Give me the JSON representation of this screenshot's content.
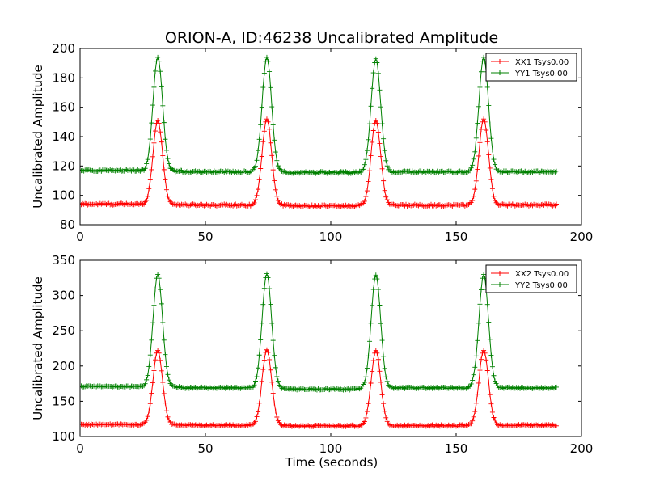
{
  "colors": {
    "red": "#ff0000",
    "green": "#008000"
  },
  "chart_data": [
    {
      "type": "line",
      "title": "ORION-A, ID:46238 Uncalibrated Amplitude",
      "xlabel": "",
      "ylabel": "Uncalibrated Amplitude",
      "xlim": [
        0,
        200
      ],
      "ylim": [
        80,
        200
      ],
      "xticks": [
        "0",
        "50",
        "100",
        "150",
        "200"
      ],
      "yticks": [
        "80",
        "100",
        "120",
        "140",
        "160",
        "180",
        "200"
      ],
      "legend_position": "top-right",
      "marker": "plus",
      "x_range": [
        0,
        190
      ],
      "peak_times": [
        31,
        74.5,
        118,
        161
      ],
      "series": [
        {
          "name": "XX1 Tsys0.00",
          "color": "#ff0000",
          "baselines": [
            94,
            93.5,
            92.8,
            93.3,
            93.5
          ],
          "peak_values": [
            151,
            152,
            151,
            152
          ]
        },
        {
          "name": "YY1 Tsys0.00",
          "color": "#008000",
          "baselines": [
            117,
            116,
            115.5,
            116,
            116
          ],
          "peak_values": [
            194,
            194,
            193,
            194
          ]
        }
      ]
    },
    {
      "type": "line",
      "title": "",
      "xlabel": "Time (seconds)",
      "ylabel": "Uncalibrated Amplitude",
      "xlim": [
        0,
        200
      ],
      "ylim": [
        100,
        350
      ],
      "xticks": [
        "0",
        "50",
        "100",
        "150",
        "200"
      ],
      "yticks": [
        "100",
        "150",
        "200",
        "250",
        "300",
        "350"
      ],
      "legend_position": "top-right",
      "marker": "plus",
      "x_range": [
        0,
        190
      ],
      "peak_times": [
        31,
        74.5,
        118,
        161
      ],
      "series": [
        {
          "name": "XX2 Tsys0.00",
          "color": "#ff0000",
          "baselines": [
            117,
            116,
            115,
            115.5,
            116
          ],
          "peak_values": [
            222,
            223,
            222,
            222
          ]
        },
        {
          "name": "YY2 Tsys0.00",
          "color": "#008000",
          "baselines": [
            171,
            169,
            167,
            169,
            169
          ],
          "peak_values": [
            330,
            331,
            329,
            330
          ]
        }
      ]
    }
  ]
}
